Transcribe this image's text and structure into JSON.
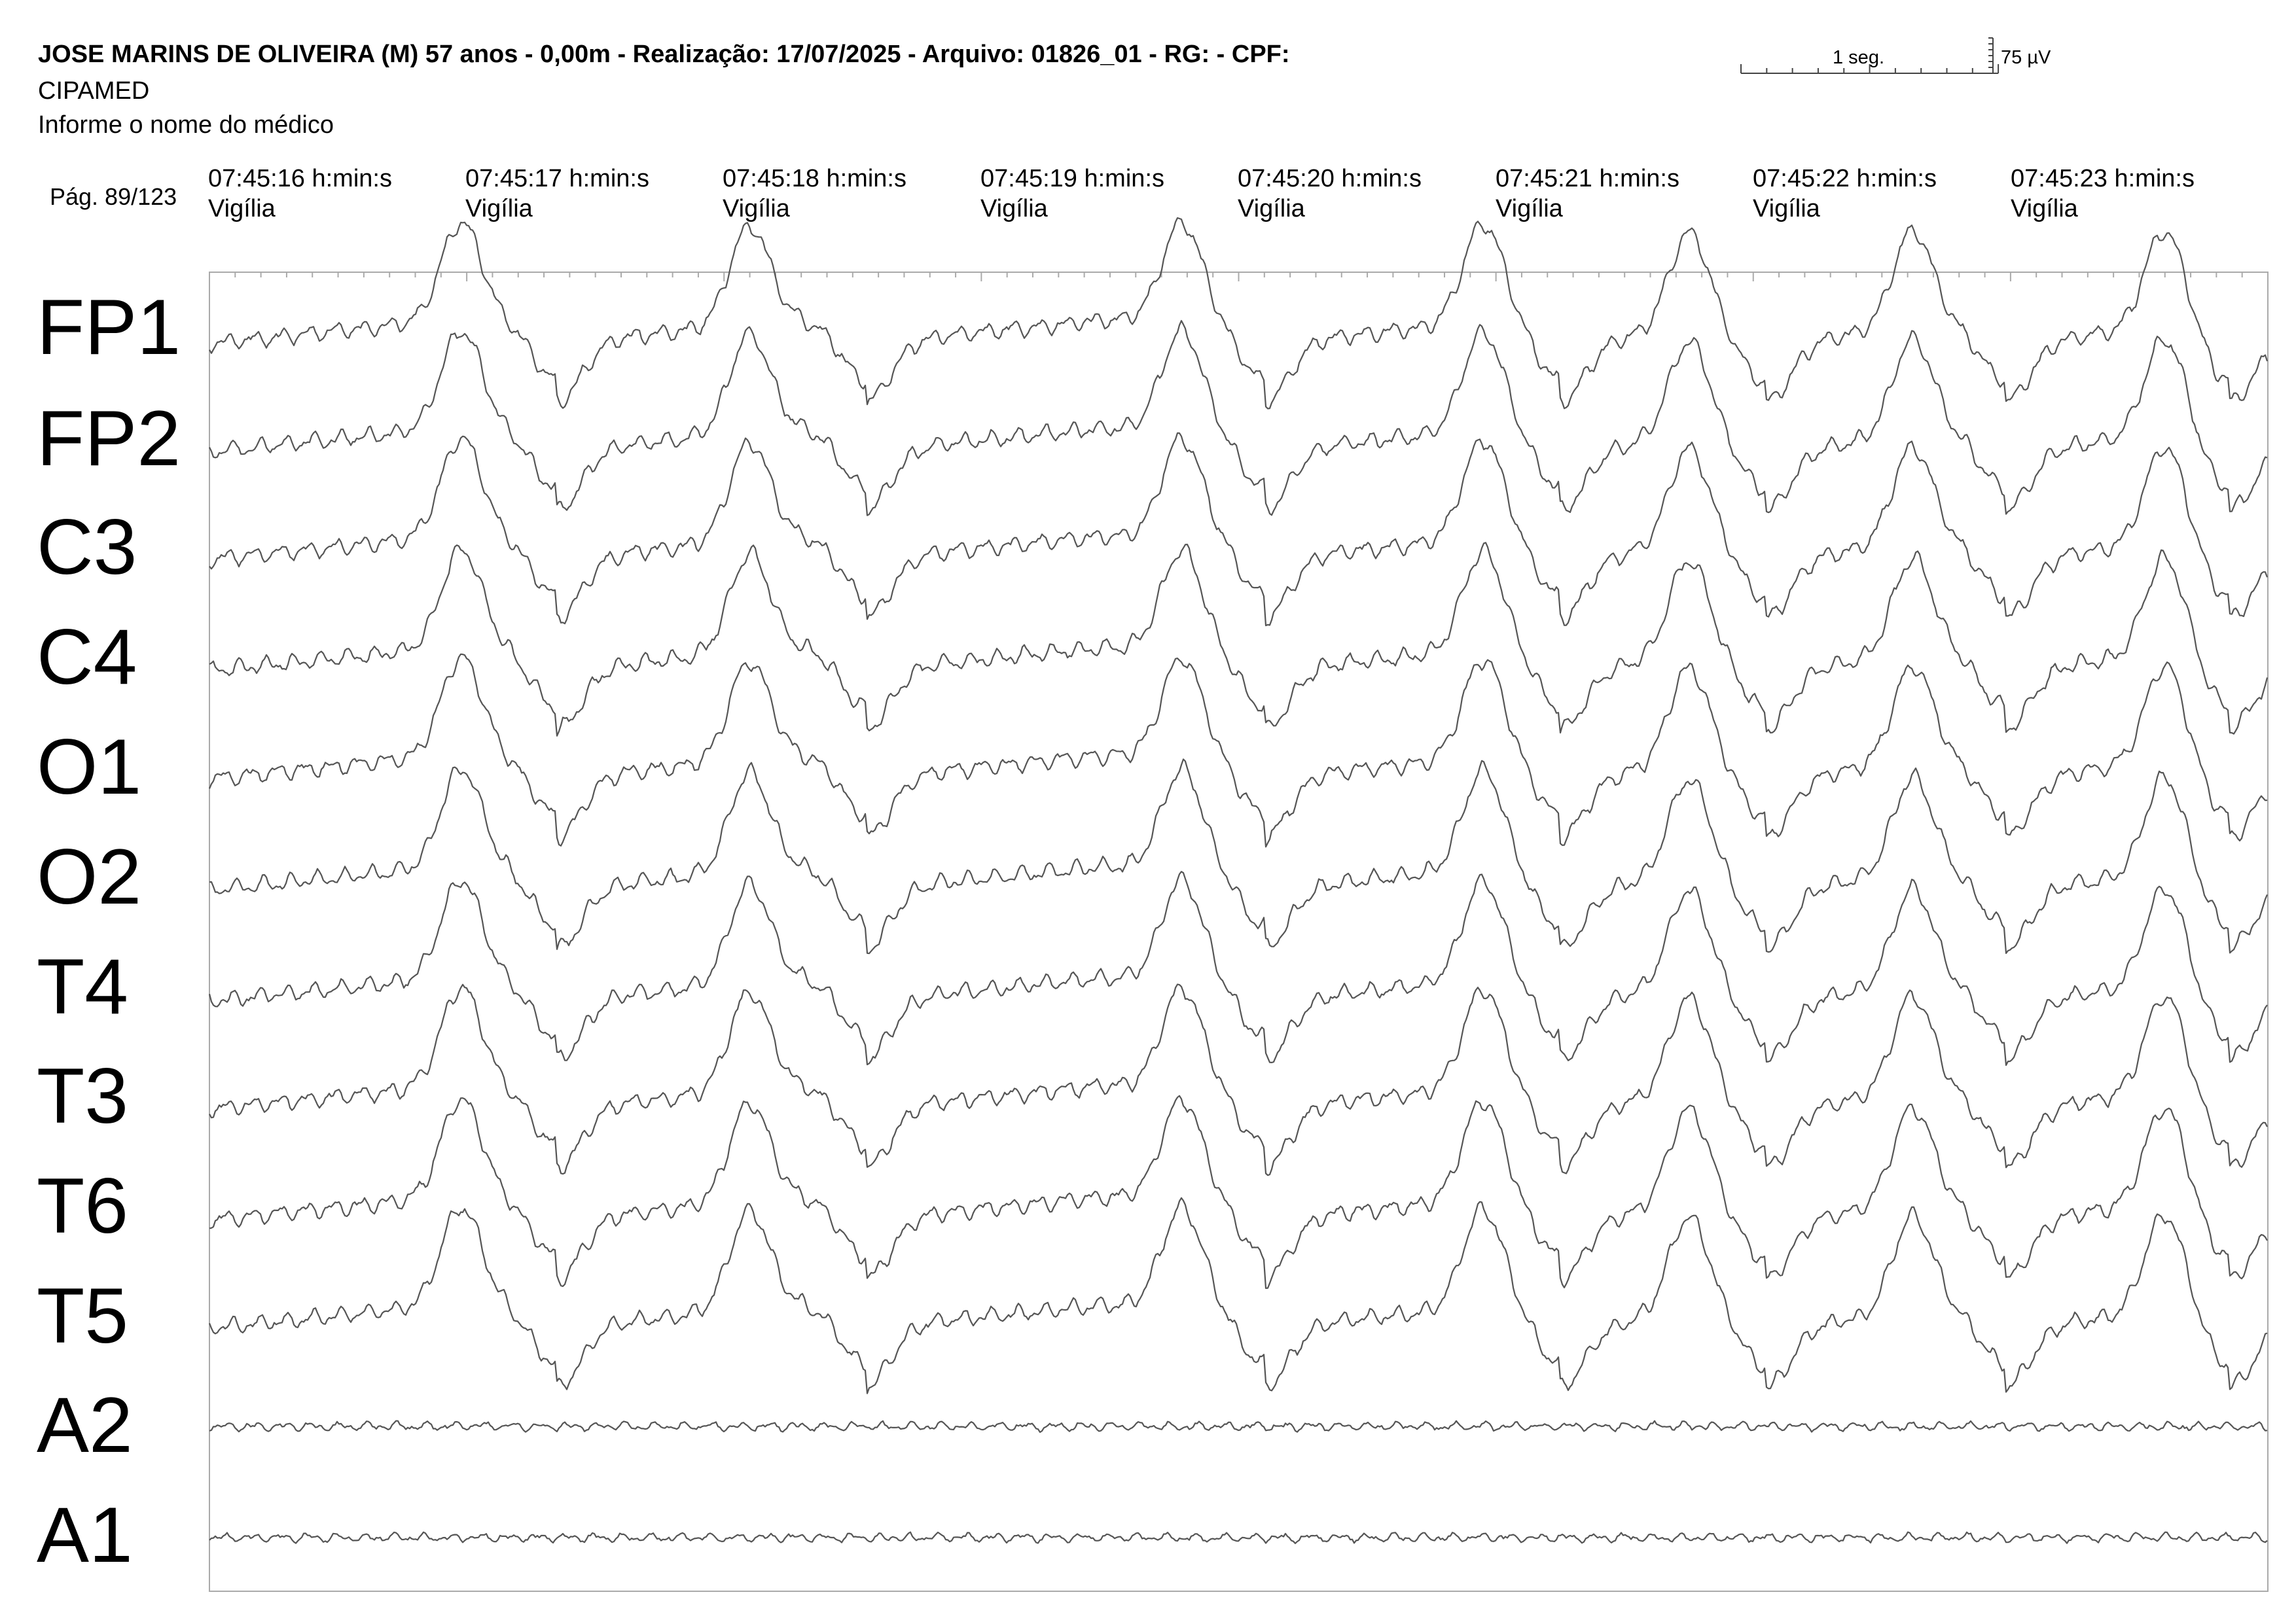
{
  "header": {
    "title": "JOSE MARINS DE OLIVEIRA (M) 57 anos - 0,00m - Realização: 17/07/2025 - Arquivo: 01826_01 - RG:  - CPF:",
    "clinic": "CIPAMED",
    "doctor": "Informe o nome do médico",
    "page": "Pág. 89/123"
  },
  "scale": {
    "time_label": "1 seg.",
    "amplitude_label": "75 µV"
  },
  "timestamps": [
    {
      "time": "07:45:16 h:min:s",
      "state": "Vigília"
    },
    {
      "time": "07:45:17 h:min:s",
      "state": "Vigília"
    },
    {
      "time": "07:45:18 h:min:s",
      "state": "Vigília"
    },
    {
      "time": "07:45:19 h:min:s",
      "state": "Vigília"
    },
    {
      "time": "07:45:20 h:min:s",
      "state": "Vigília"
    },
    {
      "time": "07:45:21 h:min:s",
      "state": "Vigília"
    },
    {
      "time": "07:45:22 h:min:s",
      "state": "Vigília"
    },
    {
      "time": "07:45:23 h:min:s",
      "state": "Vigília"
    }
  ],
  "chart_data": {
    "type": "line",
    "seconds_per_page": 8,
    "amplitude_scale_uV": 75,
    "channels": [
      "FP1",
      "FP2",
      "C3",
      "C4",
      "O1",
      "O2",
      "T4",
      "T3",
      "T6",
      "T5",
      "A2",
      "A1"
    ],
    "slow_wave_peaks_s": [
      0.98,
      2.1,
      3.78,
      4.95,
      5.75,
      6.62,
      7.6
    ],
    "trough_after_peak_s": [
      1.35,
      2.55,
      4.1,
      5.25,
      6.05,
      6.98,
      7.85
    ]
  },
  "colors": {
    "trace": "#555555",
    "grid": "#aaaaaa",
    "text": "#000000"
  }
}
